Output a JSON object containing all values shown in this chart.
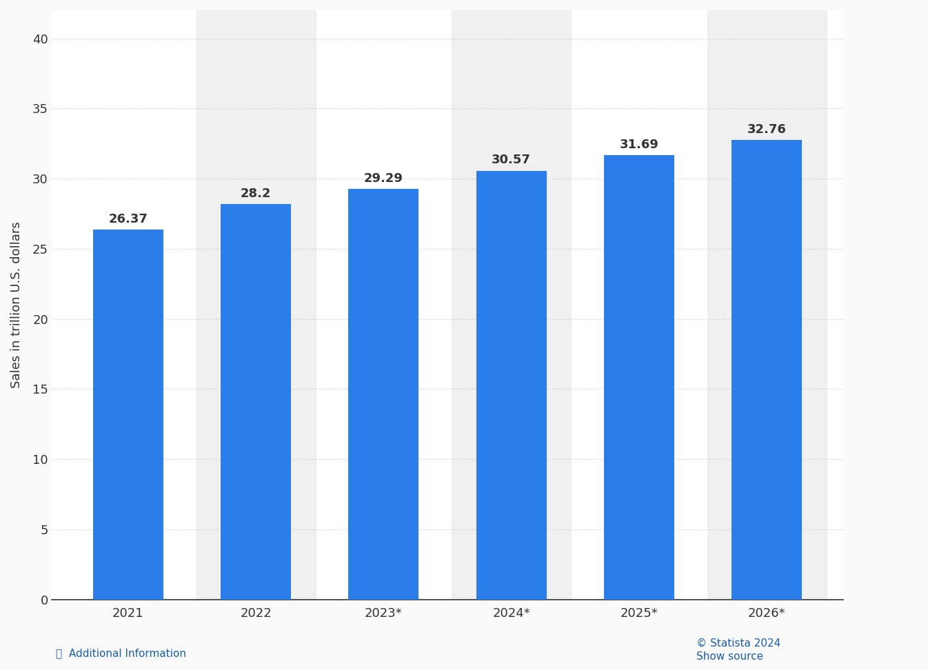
{
  "categories": [
    "2021",
    "2022",
    "2023*",
    "2024*",
    "2025*",
    "2026*"
  ],
  "values": [
    26.37,
    28.2,
    29.29,
    30.57,
    31.69,
    32.76
  ],
  "bar_color": "#2b7de9",
  "background_color": "#f9f9f9",
  "plot_bg_color": "#ffffff",
  "ylabel": "Sales in trillion U.S. dollars",
  "ylim": [
    0,
    42
  ],
  "yticks": [
    0,
    5,
    10,
    15,
    20,
    25,
    30,
    35,
    40
  ],
  "grid_color": "#cccccc",
  "label_color": "#333333",
  "label_fontsize": 13,
  "tick_fontsize": 13,
  "ylabel_fontsize": 13,
  "bar_label_fontsize": 13,
  "bar_label_color": "#333333",
  "bottom_text_left": "Additional Information",
  "bottom_text_right": "© Statista 2024",
  "bottom_text_right2": "Show source",
  "statista_color": "#1a5ea8",
  "alternate_bg_color": "#ebebeb"
}
